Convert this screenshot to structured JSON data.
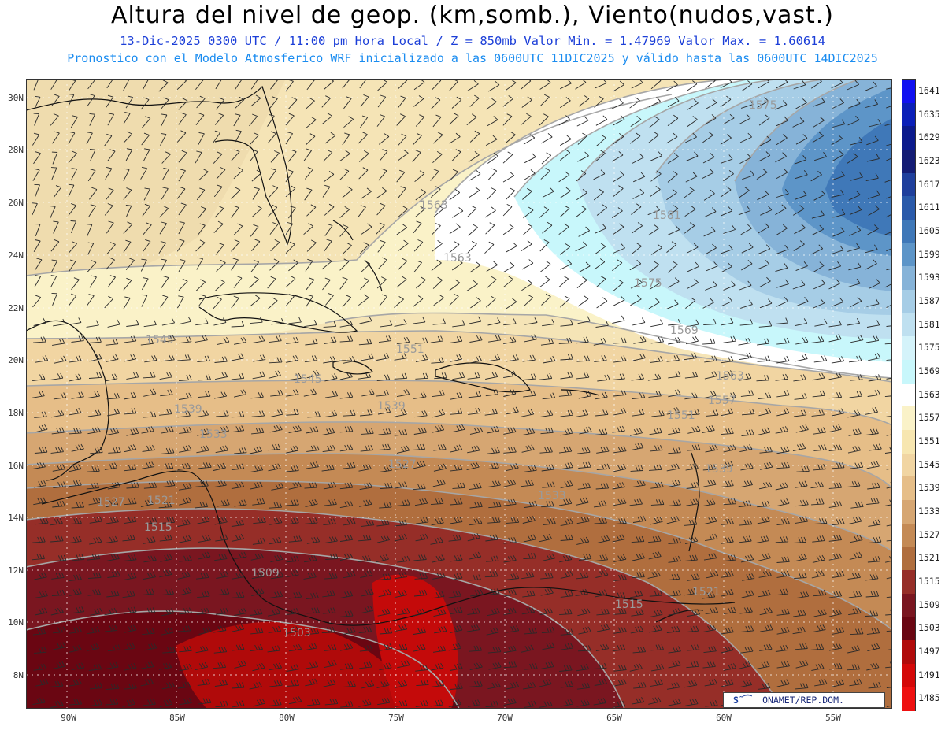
{
  "header": {
    "title": "Altura del nivel de geop. (km,somb.), Viento(nudos,vast.)",
    "subtitle1": "13-Dic-2025  0300 UTC / 11:00 pm Hora Local / Z = 850mb    Valor Min. = 1.47969  Valor Max. = 1.60614",
    "subtitle2": "Pronostico con el Modelo Atmosferico WRF inicializado a las 0600UTC_11DIC2025 y válido hasta las  0600UTC_14DIC2025"
  },
  "axes": {
    "lat_labels": [
      "30N",
      "28N",
      "26N",
      "24N",
      "22N",
      "20N",
      "18N",
      "16N",
      "14N",
      "12N",
      "10N",
      "8N"
    ],
    "lon_labels": [
      "90W",
      "85W",
      "80W",
      "75W",
      "70W",
      "65W",
      "60W",
      "55W"
    ],
    "lat_range": [
      6.8,
      30.7
    ],
    "lon_range": [
      -91.8,
      -52.4
    ]
  },
  "colorbar": {
    "labels": [
      "1641",
      "1635",
      "1629",
      "1623",
      "1617",
      "1611",
      "1605",
      "1599",
      "1593",
      "1587",
      "1581",
      "1575",
      "1569",
      "1563",
      "1557",
      "1551",
      "1545",
      "1539",
      "1533",
      "1527",
      "1521",
      "1515",
      "1509",
      "1503",
      "1497",
      "1491",
      "1485"
    ],
    "colors": [
      "#1010f0",
      "#0a1fb8",
      "#0b1a8c",
      "#141c74",
      "#1f3f9c",
      "#2a5aaa",
      "#3f78b8",
      "#5d95c8",
      "#86b3d8",
      "#a6cde6",
      "#bfe0f0",
      "#d4f3fa",
      "#c8f7fb",
      "#ffffff",
      "#faf2c8",
      "#f7e6b0",
      "#f1d5a2",
      "#e6be88",
      "#d6a672",
      "#c48a55",
      "#b06e3e",
      "#962e28",
      "#7a1620",
      "#6a0612",
      "#b00a0a",
      "#d40808",
      "#ee1010"
    ]
  },
  "contour_labels": [
    "1575",
    "1563",
    "1581",
    "1563",
    "1575",
    "1569",
    "1545",
    "1551",
    "1545",
    "1563",
    "1557",
    "1539",
    "1539",
    "1551",
    "1533",
    "1527",
    "1539",
    "1527",
    "1521",
    "1533",
    "1515",
    "1509",
    "1521",
    "1515",
    "1503"
  ],
  "credit": {
    "logo": "S˜⁀",
    "text": "ONAMET/REP.DOM."
  }
}
